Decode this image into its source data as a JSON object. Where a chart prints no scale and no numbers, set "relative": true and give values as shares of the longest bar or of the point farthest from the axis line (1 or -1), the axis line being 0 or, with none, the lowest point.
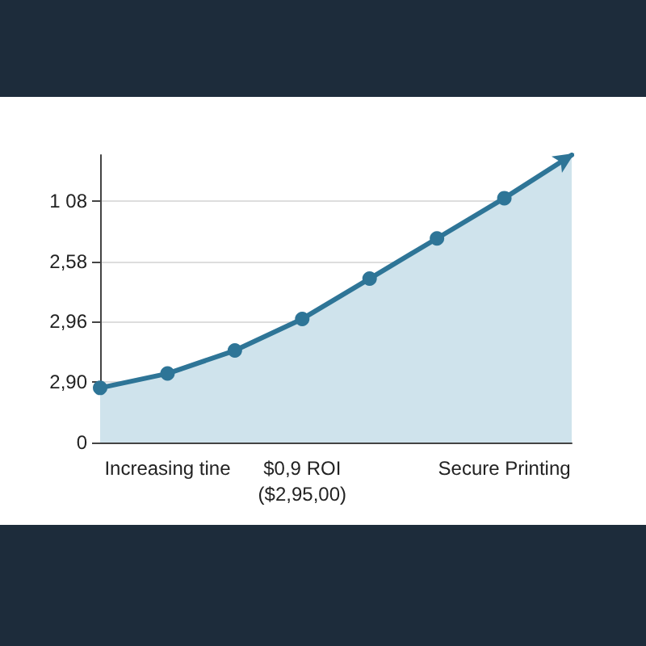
{
  "chart_data": {
    "type": "area",
    "relative": true,
    "categories": [
      null,
      "Increasing tine",
      null,
      "$0,9 ROI\n($2,95,00)",
      null,
      null,
      "Secure Printing",
      null
    ],
    "values": [
      0.19,
      0.24,
      0.32,
      0.43,
      0.57,
      0.71,
      0.85,
      1.0
    ],
    "color": "#2e7597",
    "annotations": [
      "1 08",
      "2,58",
      "2,96",
      "2,90",
      "0"
    ],
    "grid": "y",
    "marker": "circle",
    "line_style": "solid"
  }
}
